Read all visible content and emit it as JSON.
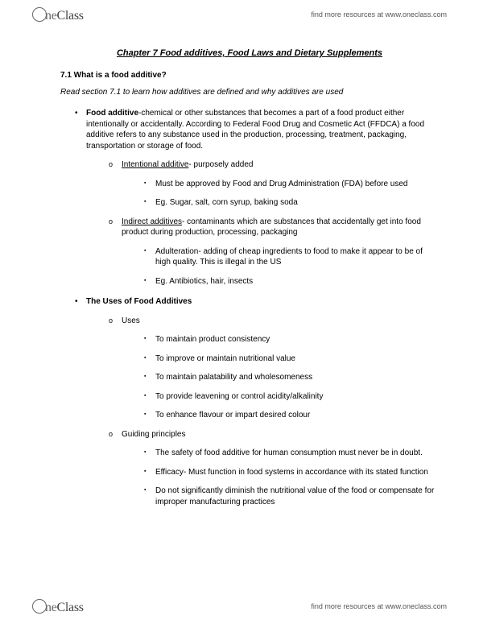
{
  "branding": {
    "logo_prefix": "ne",
    "logo_suffix": "Class",
    "tagline": "find more resources at www.oneclass.com"
  },
  "chapter": {
    "title": "Chapter 7 Food additives, Food Laws and Dietary Supplements"
  },
  "section": {
    "number_label": "7.1 What is a food additive?",
    "intro": "Read section 7.1 to learn how additives are defined and why additives are used"
  },
  "items": {
    "food_additive_label": "Food additive",
    "food_additive_def": "-chemical or other substances that becomes a part of a food product either intentionally or accidentally. According to Federal Food Drug and Cosmetic Act (FFDCA) a food additive refers to any substance used in the production, processing, treatment, packaging, transportation or storage of food.",
    "intentional_label": "Intentional additive",
    "intentional_def": "- purposely added",
    "intentional_sub1": "Must be approved by Food and Drug Administration (FDA) before used",
    "intentional_sub2": "Eg. Sugar, salt, corn syrup, baking soda",
    "indirect_label": "Indirect additives",
    "indirect_def": "- contaminants which are substances that accidentally get into food product during production, processing, packaging",
    "indirect_sub1": "Adulteration- adding of cheap ingredients to food to make it appear to be of high quality. This is illegal in the US",
    "indirect_sub2": "Eg. Antibiotics, hair, insects",
    "uses_heading": "The Uses of Food Additives",
    "uses_label": "Uses",
    "use1": "To maintain product consistency",
    "use2": "To improve or maintain nutritional value",
    "use3": "To maintain palatability and wholesomeness",
    "use4": "To provide leavening or control acidity/alkalinity",
    "use5": "To enhance flavour or impart desired colour",
    "guiding_label": "Guiding principles",
    "guide1": "The safety of food additive for human consumption must never be in doubt.",
    "guide2": "Efficacy- Must function in food systems in accordance with its stated function",
    "guide3": "Do not significantly diminish the nutritional value of the food or compensate for improper manufacturing practices"
  }
}
